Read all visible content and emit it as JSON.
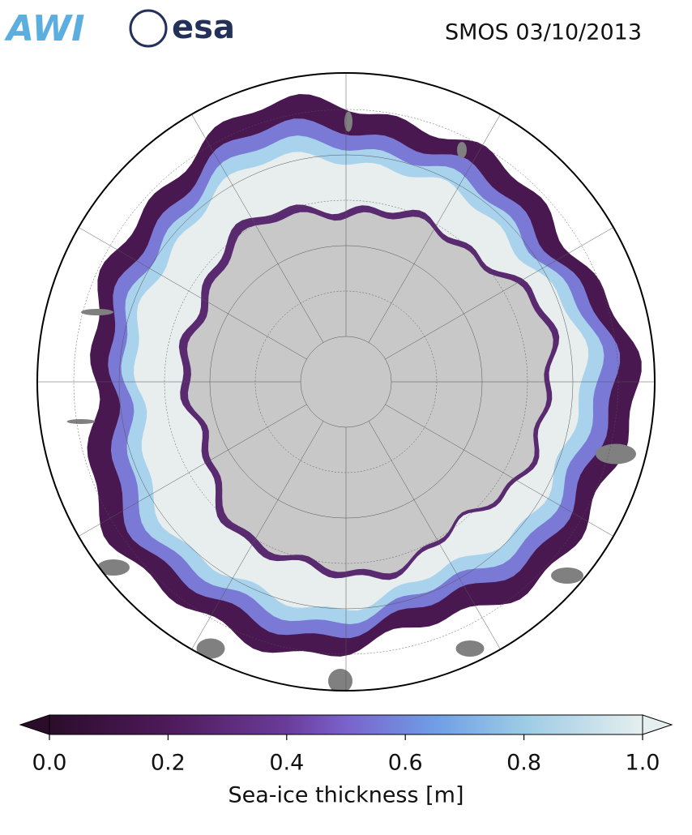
{
  "header": {
    "logos": [
      "AWI",
      "esa"
    ],
    "title": "SMOS 03/10/2013"
  },
  "map": {
    "type": "polar",
    "colorbar": {
      "label": "Sea-ice thickness [m]",
      "lim": [
        0,
        1
      ],
      "ticks": [
        {
          "value": 0,
          "label": "0.0"
        },
        0.2,
        0.4,
        0.6,
        0.8,
        {
          "value": 1,
          "label": "1.0"
        }
      ]
    }
  }
}
